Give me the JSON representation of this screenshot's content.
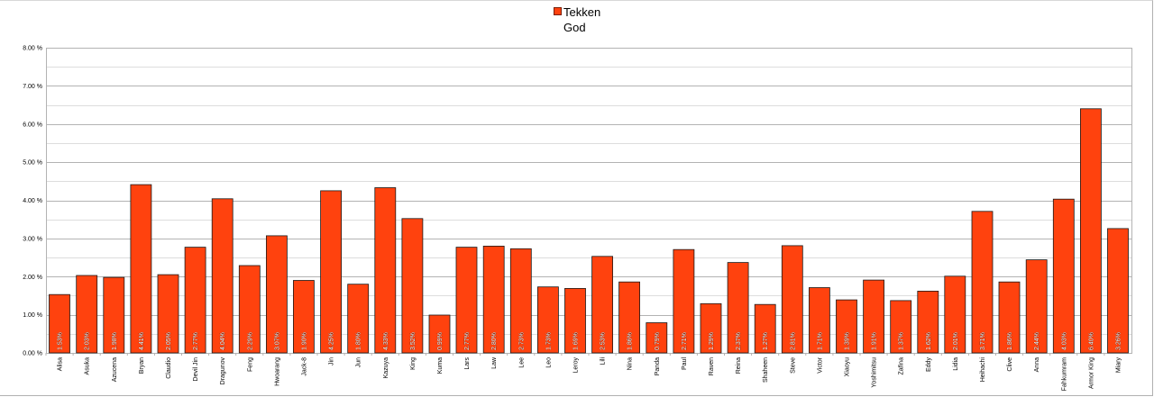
{
  "chart_data": {
    "type": "bar",
    "legend": {
      "lines": [
        "Tekken",
        "God"
      ],
      "placement": "top-center"
    },
    "y_ticks": [
      "0.00 %",
      "1.00 %",
      "2.00 %",
      "3.00 %",
      "4.00 %",
      "5.00 %",
      "6.00 %",
      "7.00 %",
      "8.00 %"
    ],
    "ylim": [
      0,
      8
    ],
    "grid": true,
    "bar_color": "#ff420e",
    "categories": [
      "Alisa",
      "Asuka",
      "Azucena",
      "Bryan",
      "Claudio",
      "Devil Jin",
      "Dragunov",
      "Feng",
      "Hwoarang",
      "Jack-8",
      "Jin",
      "Jun",
      "Kazuya",
      "King",
      "Kuma",
      "Lars",
      "Law",
      "Lee",
      "Leo",
      "Leroy",
      "Lili",
      "Nina",
      "Panda",
      "Paul",
      "Raven",
      "Reina",
      "Shaheen",
      "Steve",
      "Victor",
      "Xiaoyu",
      "Yoshimitsu",
      "Zafina",
      "Eddy",
      "Lidia",
      "Heihachi",
      "Clive",
      "Anna",
      "Fahkumram",
      "Armor King",
      "Miary"
    ],
    "values": [
      1.53,
      2.03,
      1.98,
      4.41,
      2.05,
      2.77,
      4.04,
      2.29,
      3.07,
      1.9,
      4.25,
      1.8,
      4.33,
      3.52,
      0.99,
      2.77,
      2.8,
      2.73,
      1.73,
      1.69,
      2.53,
      1.86,
      0.79,
      2.71,
      1.29,
      2.37,
      1.27,
      2.81,
      1.71,
      1.39,
      1.91,
      1.37,
      1.62,
      2.01,
      3.71,
      1.86,
      2.44,
      4.03,
      6.4,
      3.26
    ],
    "data_labels": [
      "1.53%",
      "2.03%",
      "1.98%",
      "4.41%",
      "2.05%",
      "2.77%",
      "4.04%",
      "2.29%",
      "3.07%",
      "1.90%",
      "4.25%",
      "1.80%",
      "4.33%",
      "3.52%",
      "0.99%",
      "2.77%",
      "2.80%",
      "2.73%",
      "1.73%",
      "1.69%",
      "2.53%",
      "1.86%",
      "0.79%",
      "2.71%",
      "1.29%",
      "2.37%",
      "1.27%",
      "2.81%",
      "1.71%",
      "1.39%",
      "1.91%",
      "1.37%",
      "1.62%",
      "2.01%",
      "3.71%",
      "1.86%",
      "2.44%",
      "4.03%",
      "6.40%",
      "3.26%"
    ]
  }
}
